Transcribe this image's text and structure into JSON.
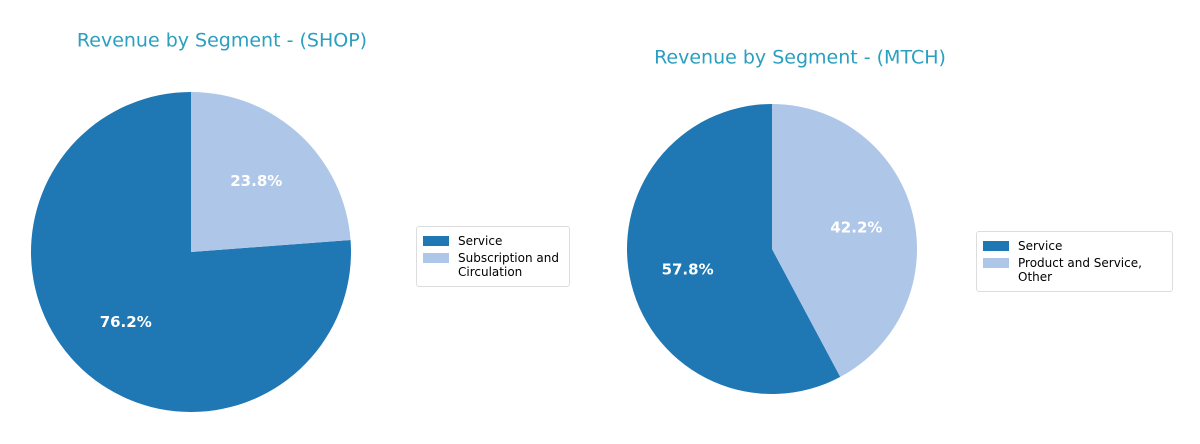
{
  "chart_data": [
    {
      "type": "pie",
      "title": "Revenue by Segment - (SHOP)",
      "categories": [
        "Service",
        "Subscription and\nCirculation"
      ],
      "values": [
        76.2,
        23.8
      ],
      "value_labels": [
        "76.2%",
        "23.8%"
      ],
      "colors": [
        "#1f77b4",
        "#aec7e8"
      ]
    },
    {
      "type": "pie",
      "title": "Revenue by Segment - (MTCH)",
      "categories": [
        "Service",
        "Product and Service, Other"
      ],
      "values": [
        57.8,
        42.2
      ],
      "value_labels": [
        "57.8%",
        "42.2%"
      ],
      "colors": [
        "#1f77b4",
        "#aec7e8"
      ]
    }
  ]
}
